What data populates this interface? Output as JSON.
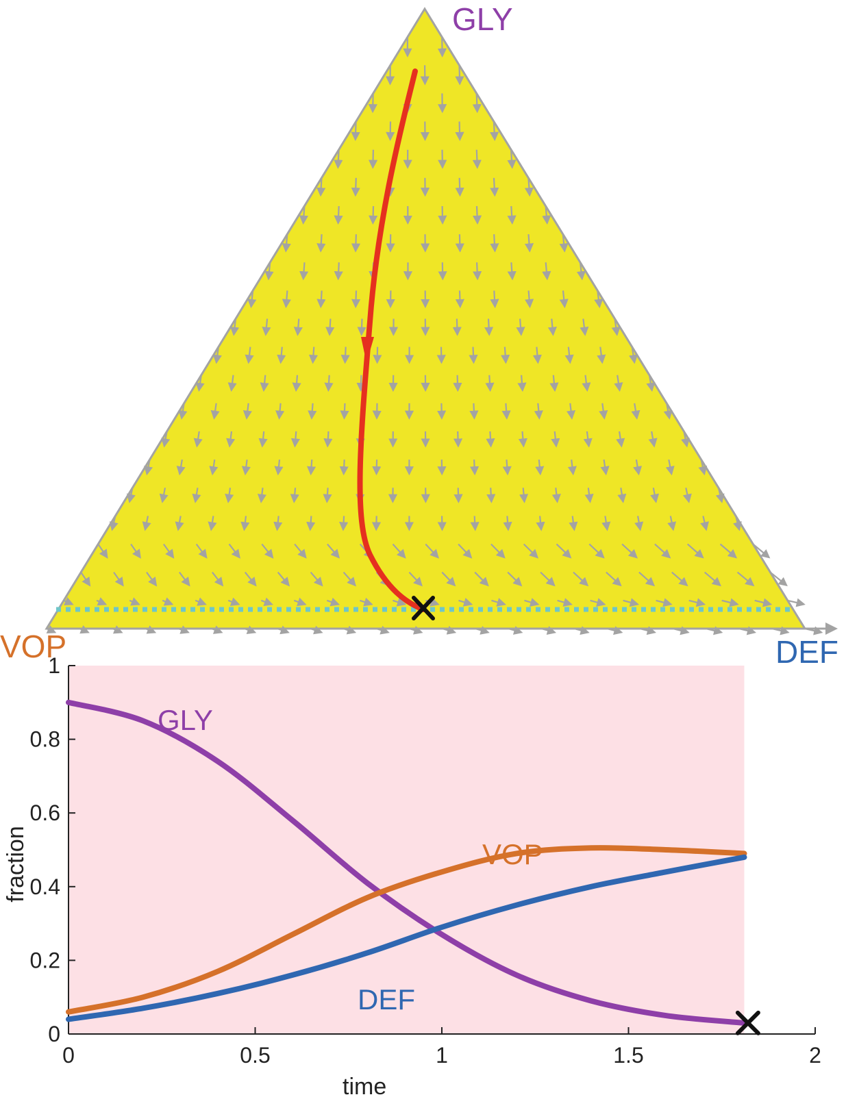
{
  "colors": {
    "gly": "#8e3fa8",
    "vop": "#d5712a",
    "def": "#2f67b1",
    "simplex_fill": "#efe626",
    "plot_bg": "#fde0e5",
    "trajectory": "#e5301f",
    "field_arrows": "#a3a3a3",
    "dotted_line": "#6fc6c8",
    "marker": "#111111"
  },
  "simplex": {
    "type": "ternary-flow",
    "vertices": {
      "top": "GLY",
      "left": "VOP",
      "right": "DEF"
    },
    "trajectory_start": {
      "GLY": 0.9,
      "VOP": 0.06,
      "DEF": 0.04
    },
    "trajectory_end": {
      "GLY": 0.03,
      "VOP": 0.49,
      "DEF": 0.48
    },
    "end_marker": "x-icon"
  },
  "chart_data": {
    "type": "line",
    "xlabel": "time",
    "ylabel": "fraction",
    "xlim": [
      0,
      2
    ],
    "ylim": [
      0,
      1
    ],
    "xticks": [
      "0",
      "0.5",
      "1",
      "1.5",
      "2"
    ],
    "yticks": [
      "0",
      "0.2",
      "0.4",
      "0.6",
      "0.8",
      "1"
    ],
    "shaded_region": [
      0,
      1.81
    ],
    "end_marker": {
      "x": 1.82,
      "y": 0.03
    },
    "series": [
      {
        "name": "GLY",
        "x": [
          0,
          0.2,
          0.4,
          0.6,
          0.8,
          1.0,
          1.2,
          1.4,
          1.6,
          1.81
        ],
        "values": [
          0.9,
          0.85,
          0.74,
          0.58,
          0.41,
          0.27,
          0.16,
          0.09,
          0.05,
          0.03
        ]
      },
      {
        "name": "VOP",
        "x": [
          0,
          0.2,
          0.4,
          0.6,
          0.8,
          1.0,
          1.2,
          1.4,
          1.6,
          1.81
        ],
        "values": [
          0.06,
          0.1,
          0.17,
          0.27,
          0.37,
          0.44,
          0.49,
          0.505,
          0.5,
          0.49
        ]
      },
      {
        "name": "DEF",
        "x": [
          0,
          0.2,
          0.4,
          0.6,
          0.8,
          1.0,
          1.2,
          1.4,
          1.6,
          1.81
        ],
        "values": [
          0.04,
          0.07,
          0.11,
          0.16,
          0.22,
          0.29,
          0.35,
          0.4,
          0.44,
          0.48
        ]
      }
    ]
  }
}
